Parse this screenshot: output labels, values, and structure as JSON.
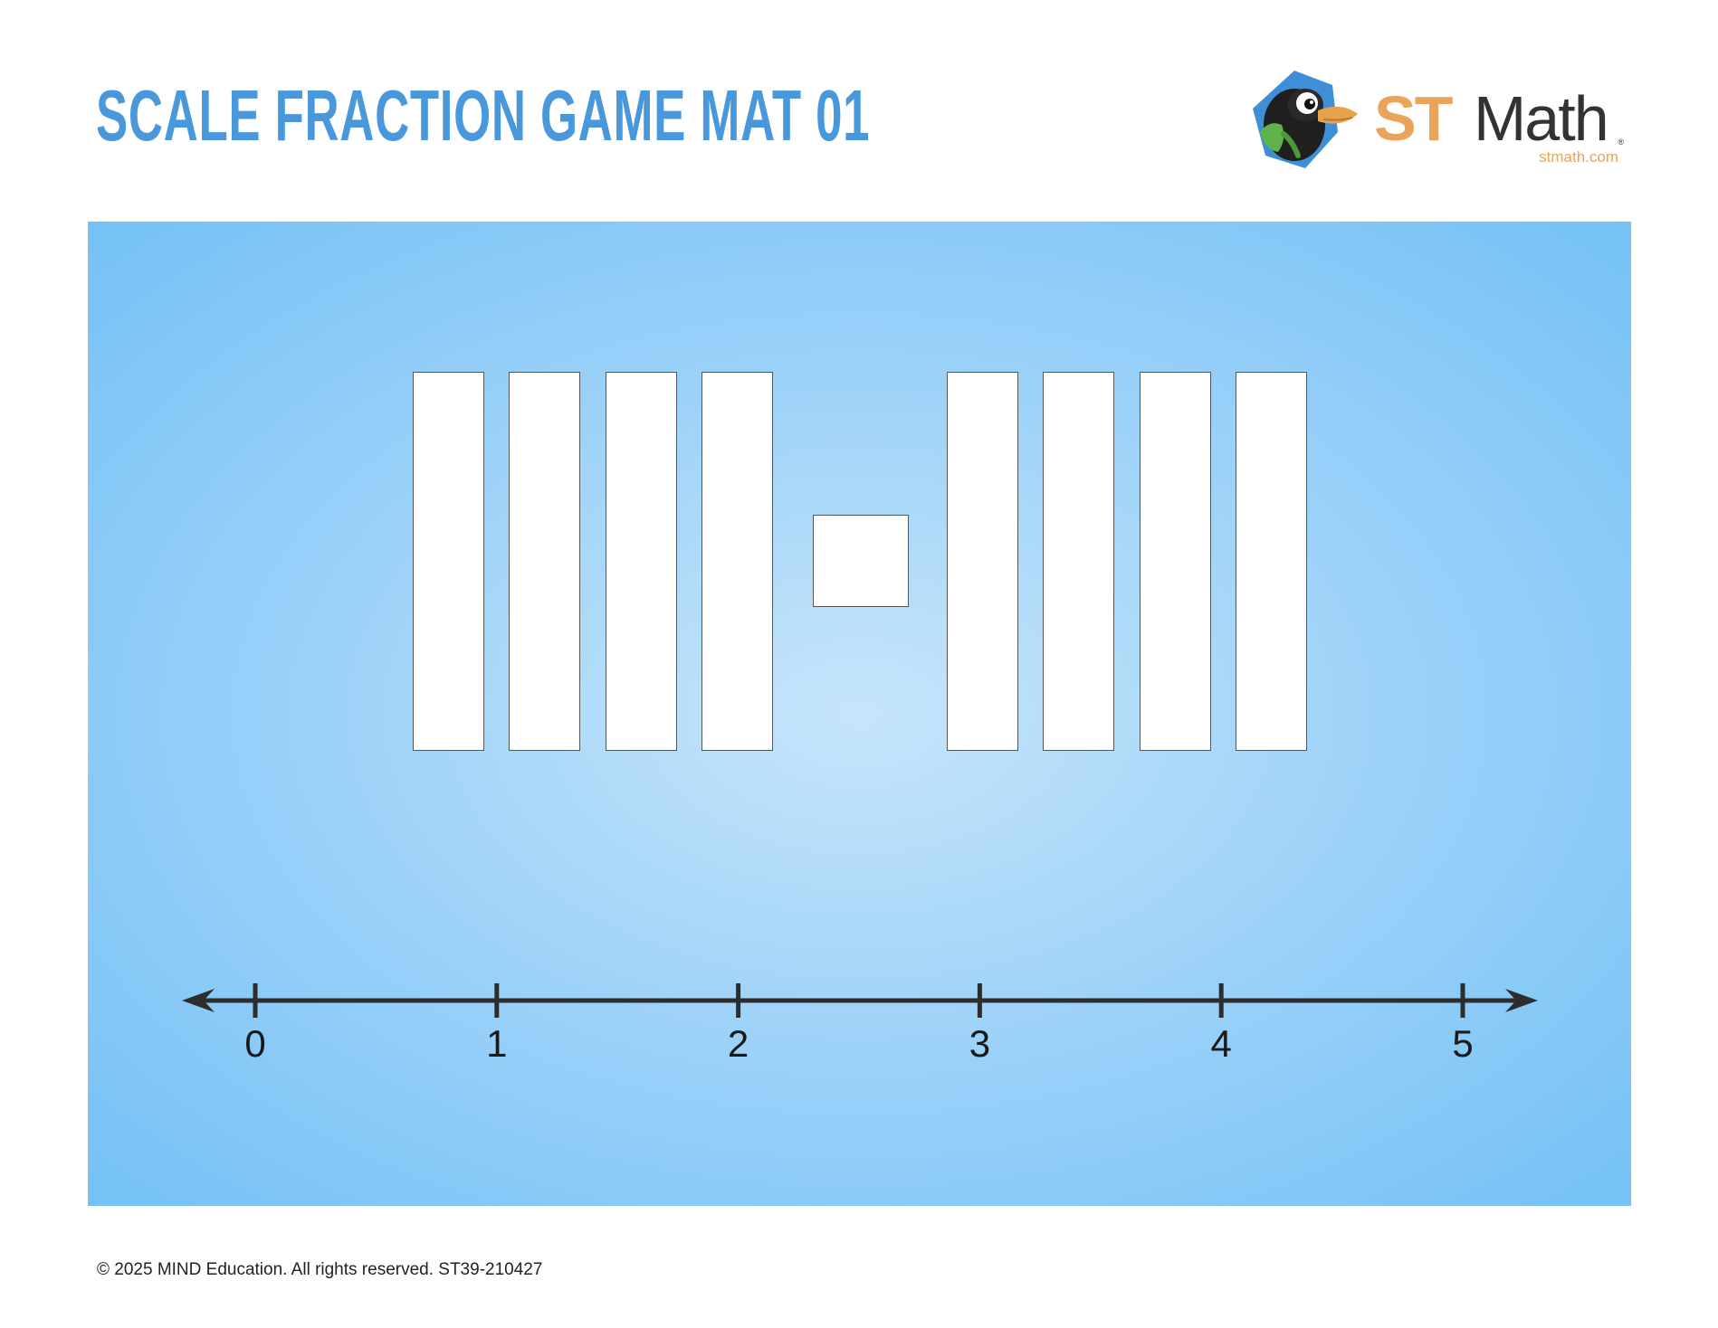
{
  "header": {
    "title": "SCALE FRACTION GAME MAT 01"
  },
  "logo": {
    "st": "ST",
    "math": "Math",
    "url": "stmath.com",
    "registered": "®",
    "mascot_icon": "penguin-mascot-icon",
    "colors": {
      "hexagon": "#3f8fd8",
      "st": "#eaa35a",
      "math": "#333333"
    }
  },
  "mat": {
    "colors": {
      "center": "#c7e5fa",
      "edge": "#74c1f6",
      "slot_fill": "#ffffff",
      "slot_border": "#555555",
      "line": "#2d2d2d"
    },
    "number_line": {
      "min": 0,
      "max": 5,
      "labels": [
        "0",
        "1",
        "2",
        "3",
        "4",
        "5"
      ]
    }
  },
  "footer": {
    "copyright": "© 2025 MIND Education. All rights reserved. ST39-210427"
  }
}
